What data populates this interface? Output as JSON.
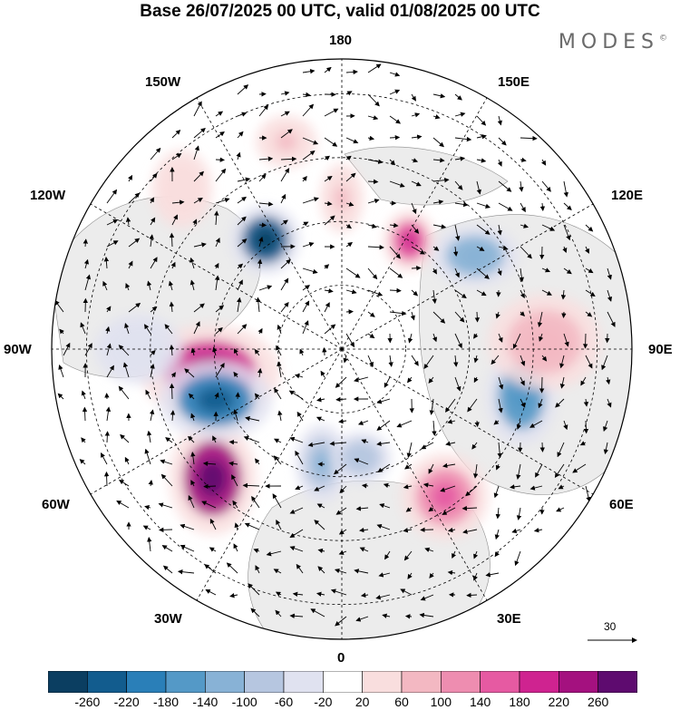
{
  "title": "Base 26/07/2025 00 UTC, valid 01/08/2025 00 UTC",
  "brand": {
    "text": "MODES",
    "mark": "©"
  },
  "longitude_labels": {
    "n": "180",
    "s": "0",
    "e": "90E",
    "w": "90W",
    "ne": "150E",
    "nw": "150W",
    "ene": "120E",
    "wnw": "120W",
    "ese": "60E",
    "wsw": "60W",
    "se": "30E",
    "sw": "30W"
  },
  "reference_vector": {
    "label": "30"
  },
  "colorbar": {
    "colors": [
      "#0b3e61",
      "#125c8e",
      "#2a7fb8",
      "#5499c7",
      "#88b2d6",
      "#b6c6e0",
      "#e0e2f0",
      "#ffffff",
      "#f9dede",
      "#f3b8c2",
      "#ee8db0",
      "#e65aa2",
      "#cf2390",
      "#a4117f",
      "#5e0b6f"
    ],
    "ticks": [
      "-260",
      "-220",
      "-180",
      "-140",
      "-100",
      "-60",
      "-20",
      "20",
      "60",
      "100",
      "140",
      "180",
      "220",
      "260"
    ]
  },
  "anomaly_blobs": [
    {
      "lon": 280,
      "r": 0.46,
      "rx": 0.16,
      "ry": 0.11,
      "value": 200
    },
    {
      "lon": 315,
      "r": 0.63,
      "rx": 0.1,
      "ry": 0.13,
      "value": 250
    },
    {
      "lon": 292,
      "r": 0.47,
      "rx": 0.13,
      "ry": 0.09,
      "value": -200
    },
    {
      "lon": 215,
      "r": 0.46,
      "rx": 0.08,
      "ry": 0.08,
      "value": -230
    },
    {
      "lon": 148,
      "r": 0.44,
      "rx": 0.06,
      "ry": 0.07,
      "value": 160
    },
    {
      "lon": 125,
      "r": 0.56,
      "rx": 0.1,
      "ry": 0.07,
      "value": -120
    },
    {
      "lon": 75,
      "r": 0.64,
      "rx": 0.08,
      "ry": 0.11,
      "value": -150
    },
    {
      "lon": 92,
      "r": 0.7,
      "rx": 0.13,
      "ry": 0.11,
      "value": 80
    },
    {
      "lon": 35,
      "r": 0.62,
      "rx": 0.1,
      "ry": 0.1,
      "value": 130
    },
    {
      "lon": 350,
      "r": 0.4,
      "rx": 0.06,
      "ry": 0.09,
      "value": -90
    },
    {
      "lon": 10,
      "r": 0.38,
      "rx": 0.07,
      "ry": 0.06,
      "value": -80
    },
    {
      "lon": 195,
      "r": 0.74,
      "rx": 0.07,
      "ry": 0.06,
      "value": 60
    },
    {
      "lon": 225,
      "r": 0.78,
      "rx": 0.07,
      "ry": 0.09,
      "value": 50
    },
    {
      "lon": 180,
      "r": 0.52,
      "rx": 0.05,
      "ry": 0.08,
      "value": 60
    },
    {
      "lon": 270,
      "r": 0.7,
      "rx": 0.1,
      "ry": 0.08,
      "value": -40
    }
  ]
}
